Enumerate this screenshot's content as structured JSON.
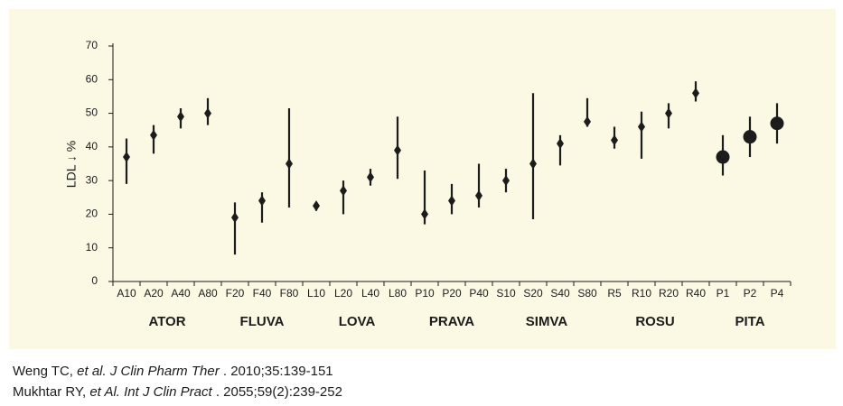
{
  "chart_data": {
    "type": "errorbar",
    "ylabel": "LDL ↓ %",
    "categories": [
      "A10",
      "A20",
      "A40",
      "A80",
      "F20",
      "F40",
      "F80",
      "L10",
      "L20",
      "L40",
      "L80",
      "P10",
      "P20",
      "P40",
      "S10",
      "S20",
      "S40",
      "S80",
      "R5",
      "R10",
      "R20",
      "R40",
      "P1",
      "P2",
      "P4"
    ],
    "values": [
      37,
      43.5,
      49,
      50,
      19,
      24,
      35,
      22.5,
      27,
      31,
      39,
      20,
      24,
      25.5,
      30,
      35,
      41,
      47.5,
      42,
      46,
      50,
      56,
      37,
      43,
      47
    ],
    "low": [
      29,
      38,
      45.5,
      46.5,
      8,
      17.5,
      22,
      21,
      20,
      28.5,
      30.5,
      17,
      20,
      22,
      26.5,
      18.5,
      34.5,
      46,
      39.5,
      36.5,
      45.5,
      53.5,
      31.5,
      37,
      41
    ],
    "high": [
      42.5,
      46.5,
      51.5,
      54.5,
      23.5,
      26.5,
      51.5,
      23.5,
      30,
      33.5,
      49,
      33,
      29,
      35,
      33.5,
      56,
      43.5,
      54.5,
      46,
      50.5,
      53,
      59.5,
      43.5,
      49,
      53
    ],
    "markers": [
      "diamond",
      "diamond",
      "diamond",
      "diamond",
      "diamond",
      "diamond",
      "diamond",
      "diamond",
      "diamond",
      "diamond",
      "diamond",
      "diamond",
      "diamond",
      "diamond",
      "diamond",
      "diamond",
      "diamond",
      "diamond",
      "diamond",
      "diamond",
      "diamond",
      "diamond",
      "circle",
      "circle",
      "circle"
    ],
    "color": "#1c1c1c",
    "groups": [
      {
        "label": "ATOR",
        "members": [
          "A10",
          "A20",
          "A40",
          "A80"
        ]
      },
      {
        "label": "FLUVA",
        "members": [
          "F20",
          "F40",
          "F80"
        ]
      },
      {
        "label": "LOVA",
        "members": [
          "L10",
          "L20",
          "L40",
          "L80"
        ]
      },
      {
        "label": "PRAVA",
        "members": [
          "P10",
          "P20",
          "P40"
        ]
      },
      {
        "label": "SIMVA",
        "members": [
          "S10",
          "S20",
          "S40",
          "S80"
        ]
      },
      {
        "label": "ROSU",
        "members": [
          "R5",
          "R10",
          "R20",
          "R40"
        ]
      },
      {
        "label": "PITA",
        "members": [
          "P1",
          "P2",
          "P4"
        ]
      }
    ],
    "ylim": [
      0,
      70
    ],
    "yticks": [
      0,
      10,
      20,
      30,
      40,
      50,
      60,
      70
    ]
  },
  "citations": [
    [
      {
        "text": "Weng TC, "
      },
      {
        "text": "et al. J Clin Pharm Ther",
        "italic": true
      },
      {
        "text": " . 2010;35:139-151"
      }
    ],
    [
      {
        "text": "Mukhtar RY, "
      },
      {
        "text": "et Al. Int J Clin Pract",
        "italic": true
      },
      {
        "text": " . 2055;59(2):239-252"
      }
    ]
  ]
}
